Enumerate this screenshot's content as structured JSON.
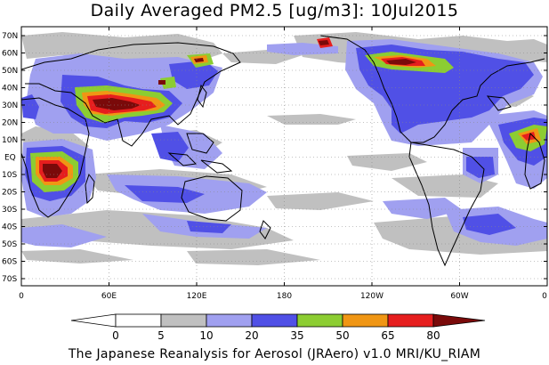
{
  "title": "Daily Averaged PM2.5 [ug/m3]: 10Jul2015",
  "credit": "The Japanese Reanalysis for Aerosol (JRAero) v1.0 MRI/KU_RIAM",
  "lat_labels": [
    "70N",
    "60N",
    "50N",
    "40N",
    "30N",
    "20N",
    "10N",
    "EQ",
    "10S",
    "20S",
    "30S",
    "40S",
    "50S",
    "60S",
    "70S"
  ],
  "lon_labels": [
    "0",
    "60E",
    "120E",
    "180",
    "120W",
    "60W",
    "0"
  ],
  "colorbar": {
    "labels": [
      "0",
      "5",
      "10",
      "20",
      "35",
      "50",
      "65",
      "80"
    ],
    "colors": [
      "#ffffff",
      "#c0c0c0",
      "#a0a0f0",
      "#5050e6",
      "#8ccd32",
      "#f09614",
      "#e61e1e",
      "#7a0a0a"
    ]
  }
}
